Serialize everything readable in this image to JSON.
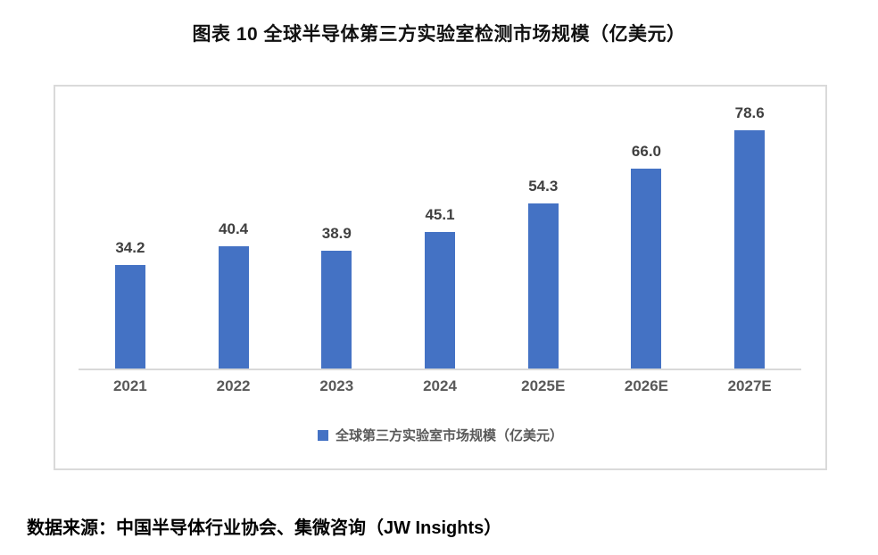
{
  "title": "图表 10 全球半导体第三方实验室检测市场规模（亿美元）",
  "chart_data": {
    "type": "bar",
    "categories": [
      "2021",
      "2022",
      "2023",
      "2024",
      "2025E",
      "2026E",
      "2027E"
    ],
    "values": [
      34.2,
      40.4,
      38.9,
      45.1,
      54.3,
      66.0,
      78.6
    ],
    "value_labels": [
      "34.2",
      "40.4",
      "38.9",
      "45.1",
      "54.3",
      "66.0",
      "78.6"
    ],
    "title": "图表 10 全球半导体第三方实验室检测市场规模（亿美元）",
    "xlabel": "",
    "ylabel": "",
    "ylim": [
      0,
      90
    ],
    "grid": false,
    "legend": [
      "全球第三方实验室市场规模（亿美元）"
    ],
    "legend_position": "bottom",
    "bar_color": "#4472C4"
  },
  "legend_label": "全球第三方实验室市场规模（亿美元）",
  "source": "数据来源：中国半导体行业协会、集微咨询（JW Insights）",
  "colors": {
    "bar": "#4472C4",
    "chart_border": "#dadada",
    "axis": "#d9d9d9",
    "data_label": "#404040",
    "tick_label": "#595959",
    "title_text": "#111111"
  }
}
